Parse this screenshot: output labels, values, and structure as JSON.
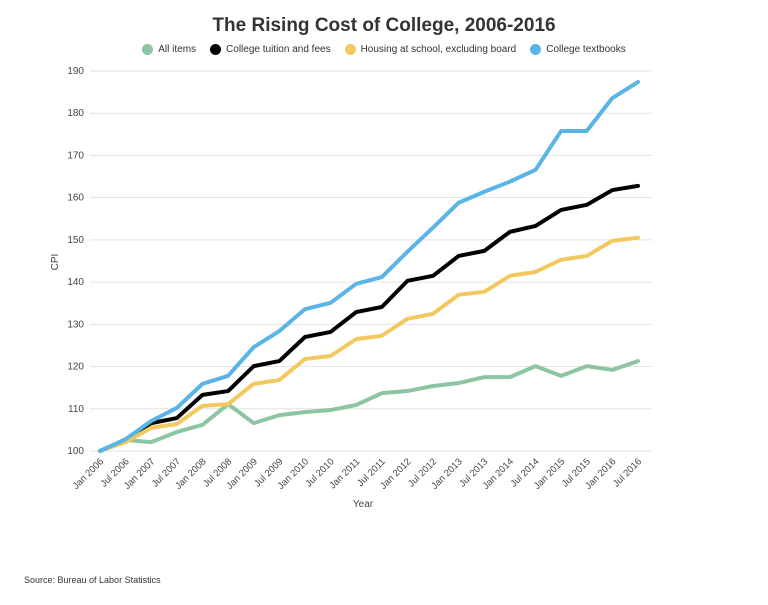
{
  "chart_data": {
    "type": "line",
    "title": "The Rising Cost of College, 2006-2016",
    "xlabel": "Year",
    "ylabel": "CPI",
    "ylim": [
      100,
      190
    ],
    "yticks": [
      100,
      110,
      120,
      130,
      140,
      150,
      160,
      170,
      180,
      190
    ],
    "grid": true,
    "legend_position": "top",
    "categories": [
      "Jan 2006",
      "Jul 2006",
      "Jan 2007",
      "Jul 2007",
      "Jan 2008",
      "Jul 2008",
      "Jan 2009",
      "Jul 2009",
      "Jan 2010",
      "Jul 2010",
      "Jan 2011",
      "Jul 2011",
      "Jan 2012",
      "Jul 2012",
      "Jan 2013",
      "Jul 2013",
      "Jan 2014",
      "Jul 2014",
      "Jan 2015",
      "Jul 2015",
      "Jan 2016",
      "Jul 2016"
    ],
    "series": [
      {
        "name": "All items",
        "color": "#8cc5a2",
        "values": [
          100,
          102.6,
          102.1,
          104.5,
          106.2,
          111.1,
          106.6,
          108.5,
          109.2,
          109.7,
          110.9,
          113.7,
          114.2,
          115.4,
          116.1,
          117.5,
          117.5,
          120.1,
          117.8,
          120.1,
          119.2,
          121.3
        ]
      },
      {
        "name": "College tuition and fees",
        "color": "#000000",
        "values": [
          100,
          102.6,
          106.6,
          107.8,
          113.3,
          114.2,
          120.1,
          121.3,
          127.0,
          128.2,
          132.9,
          134.1,
          140.3,
          141.5,
          146.2,
          147.4,
          151.9,
          153.3,
          157.1,
          158.3,
          161.8,
          162.8
        ]
      },
      {
        "name": "Housing at school, excluding board",
        "color": "#f2c95f",
        "values": [
          100,
          102.1,
          105.5,
          106.4,
          110.7,
          111.1,
          115.9,
          116.8,
          121.8,
          122.5,
          126.5,
          127.3,
          131.3,
          132.5,
          137.0,
          137.7,
          141.5,
          142.4,
          145.3,
          146.2,
          149.8,
          150.5
        ]
      },
      {
        "name": "College textbooks",
        "color": "#5ab4e5",
        "values": [
          100,
          102.8,
          107.1,
          110.2,
          115.9,
          117.8,
          124.6,
          128.4,
          133.6,
          135.1,
          139.6,
          141.2,
          147.2,
          152.9,
          158.8,
          161.4,
          163.8,
          166.6,
          175.8,
          175.8,
          183.6,
          187.4
        ]
      }
    ]
  },
  "source": "Source: Bureau of Labor Statistics"
}
